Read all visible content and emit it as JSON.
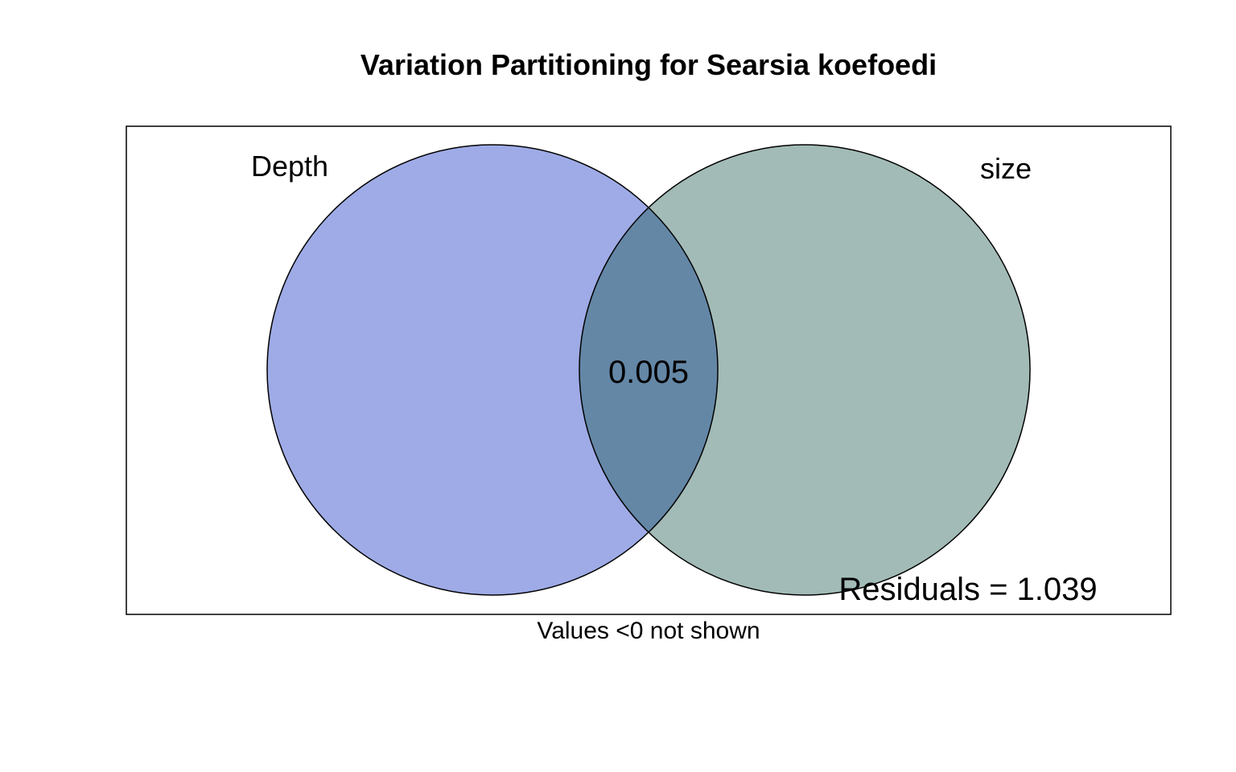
{
  "title": "Variation Partitioning for Searsia koefoedi",
  "sets": [
    {
      "label": "Depth",
      "color": "#6a80d8"
    },
    {
      "label": "size",
      "color": "#729a93"
    }
  ],
  "intersection_value": "0.005",
  "residuals_text": "Residuals = 1.039",
  "footnote": "Values <0 not shown",
  "colors": {
    "overlap": "#6487a6",
    "outline": "#000000",
    "background": "#ffffff"
  }
}
